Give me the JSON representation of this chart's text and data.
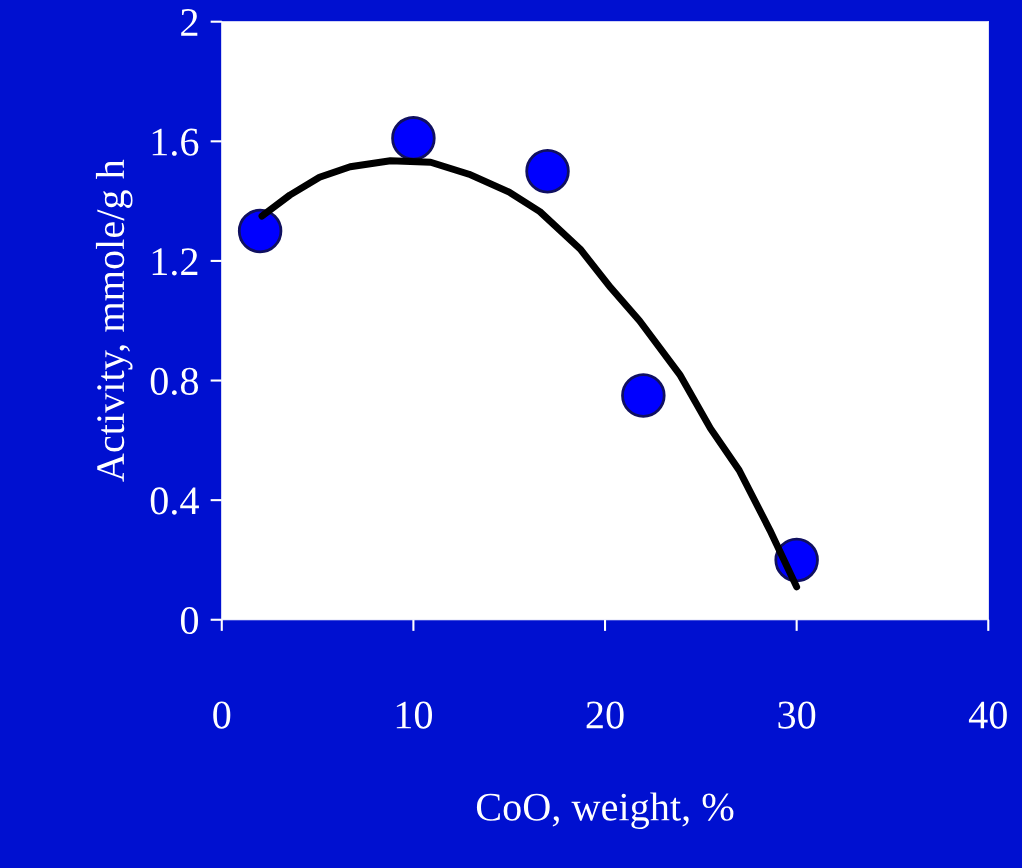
{
  "chart_data": {
    "type": "scatter",
    "xlabel": "CoO, weight, %",
    "ylabel": "Activity, mmole/g h",
    "xlim": [
      0,
      40
    ],
    "xticks": [
      0,
      10,
      20,
      30,
      40
    ],
    "ylim": [
      0,
      2
    ],
    "yticks": [
      0,
      0.4,
      0.8,
      1.2,
      1.6,
      2
    ],
    "grid": false,
    "legend": false,
    "marker": "circle",
    "series": [
      {
        "color": "#0000ff",
        "x": [
          2,
          10,
          17,
          22,
          30
        ],
        "values": [
          1.3,
          1.61,
          1.5,
          0.75,
          0.2
        ]
      },
      {
        "type": "line",
        "color": "#000000",
        "marker": "none",
        "line_style": "solid",
        "x": [
          2.1,
          3.55,
          5.1,
          6.7,
          8.8,
          10.9,
          12.9,
          15.0,
          16.6,
          18.7,
          20.3,
          21.8,
          23.9,
          25.5,
          27.0,
          28.6,
          30.0
        ],
        "values": [
          1.35,
          1.42,
          1.48,
          1.515,
          1.535,
          1.53,
          1.49,
          1.43,
          1.365,
          1.24,
          1.11,
          1.0,
          0.82,
          0.64,
          0.5,
          0.3,
          0.11
        ]
      }
    ]
  }
}
